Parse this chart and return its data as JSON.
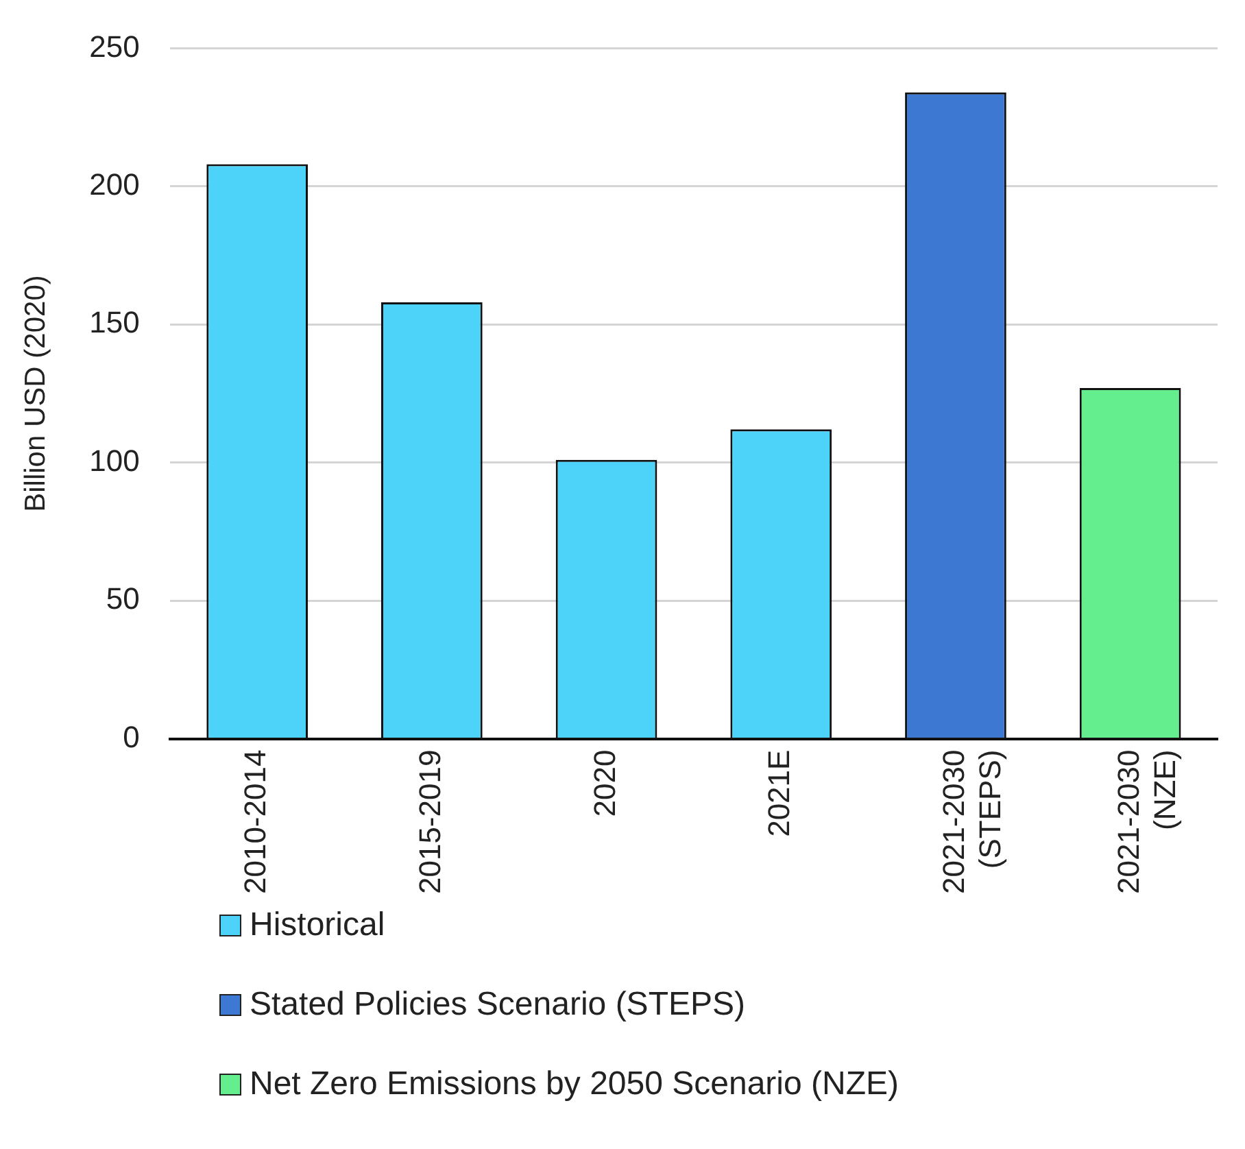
{
  "chart_data": {
    "type": "bar",
    "ylabel": "Billion USD (2020)",
    "categories": [
      "2010-2014",
      "2015-2019",
      "2020",
      "2021E",
      "2021-2030 (STEPS)",
      "2021-2030 (NZE)"
    ],
    "series": [
      {
        "name": "Historical",
        "color": "#4dd2fa",
        "values": [
          208,
          158,
          101,
          112,
          null,
          null
        ]
      },
      {
        "name": "Stated Policies Scenario (STEPS)",
        "color": "#3d78d2",
        "values": [
          null,
          null,
          null,
          null,
          234,
          null
        ]
      },
      {
        "name": "Net Zero Emissions by 2050 Scenario (NZE)",
        "color": "#64ee8e",
        "values": [
          null,
          null,
          null,
          null,
          null,
          127
        ]
      }
    ],
    "ylim": [
      0,
      250
    ],
    "yticks": [
      0,
      50,
      100,
      150,
      200,
      250
    ],
    "grid": "y",
    "legend": "bottom"
  }
}
